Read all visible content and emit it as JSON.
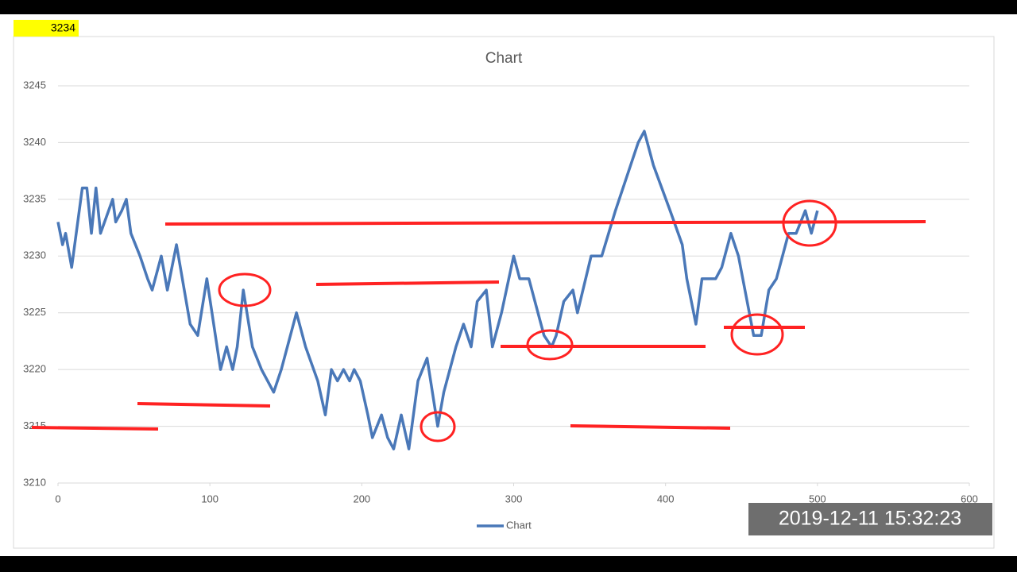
{
  "badge": "3234",
  "timestamp": "2019-12-11  15:32:23",
  "chart_data": {
    "type": "line",
    "title": "Chart",
    "x": [
      0,
      3,
      5,
      9,
      16,
      19,
      22,
      25,
      28,
      36,
      38,
      42,
      45,
      48,
      54,
      59,
      62,
      68,
      72,
      78,
      87,
      92,
      98,
      107,
      111,
      115,
      118,
      122,
      128,
      134,
      142,
      147,
      157,
      163,
      171,
      176,
      180,
      184,
      188,
      192,
      195,
      199,
      204,
      207,
      213,
      217,
      221,
      226,
      231,
      237,
      243,
      250,
      254,
      262,
      267,
      272,
      276,
      282,
      286,
      292,
      300,
      304,
      310,
      320,
      325,
      328,
      333,
      339,
      342,
      351,
      358,
      367,
      377,
      382,
      386,
      392,
      403,
      411,
      414,
      420,
      424,
      433,
      437,
      443,
      448,
      458,
      463,
      468,
      473,
      481,
      486,
      492,
      496,
      500
    ],
    "series": [
      {
        "name": "Chart",
        "color": "#4a78b8",
        "values": [
          3233,
          3231,
          3232,
          3229,
          3236,
          3236,
          3232,
          3236,
          3232,
          3235,
          3233,
          3234,
          3235,
          3232,
          3230,
          3228,
          3227,
          3230,
          3227,
          3231,
          3224,
          3223,
          3228,
          3220,
          3222,
          3220,
          3222,
          3227,
          3222,
          3220,
          3218,
          3220,
          3225,
          3222,
          3219,
          3216,
          3220,
          3219,
          3220,
          3219,
          3220,
          3219,
          3216,
          3214,
          3216,
          3214,
          3213,
          3216,
          3213,
          3219,
          3221,
          3215,
          3218,
          3222,
          3224,
          3222,
          3226,
          3227,
          3222,
          3225,
          3230,
          3228,
          3228,
          3223,
          3222,
          3223,
          3226,
          3227,
          3225,
          3230,
          3230,
          3234,
          3238,
          3240,
          3241,
          3238,
          3234,
          3231,
          3228,
          3224,
          3228,
          3228,
          3229,
          3232,
          3230,
          3223,
          3223,
          3227,
          3228,
          3232,
          3232,
          3234,
          3232,
          3234
        ]
      }
    ],
    "xlim": [
      0,
      600
    ],
    "xticks": [
      0,
      100,
      200,
      300,
      400,
      500,
      600
    ],
    "ylim": [
      3210,
      3245
    ],
    "yticks": [
      3210,
      3215,
      3220,
      3225,
      3230,
      3235,
      3240,
      3245
    ],
    "grid": true,
    "legend": "bottom"
  }
}
